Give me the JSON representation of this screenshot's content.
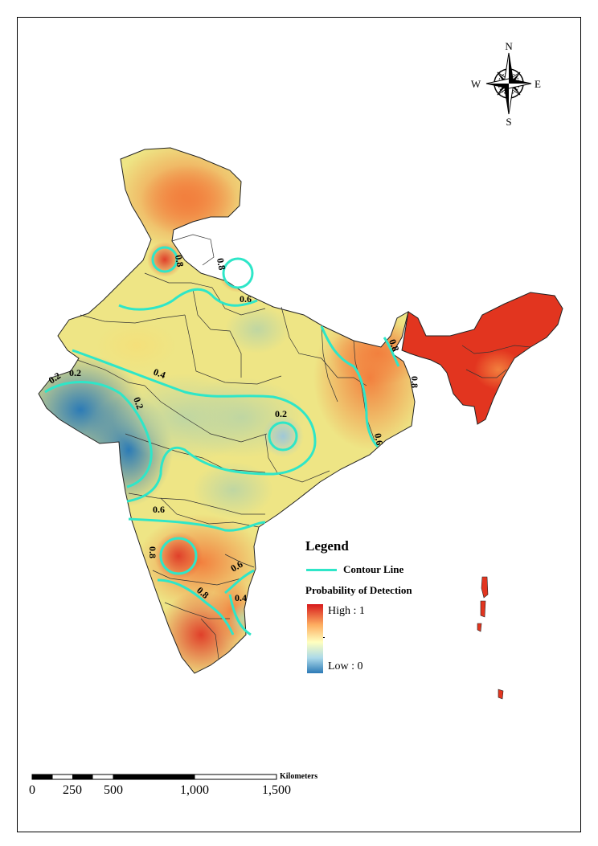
{
  "legend": {
    "title": "Legend",
    "contour_label": "Contour Line",
    "probability_title": "Probability of Detection",
    "high_label": "High : 1",
    "low_label": "Low : 0"
  },
  "compass": {
    "n": "N",
    "s": "S",
    "e": "E",
    "w": "W"
  },
  "scale_bar": {
    "unit": "Kilometers",
    "ticks": [
      "0",
      "250",
      "500",
      "1,000",
      "1,500"
    ]
  },
  "contour_labels": [
    "0.2",
    "0.2",
    "0.4",
    "0.2",
    "0.2",
    "0.6",
    "0.8",
    "0.8",
    "0.8",
    "0.8",
    "0.6",
    "0.6",
    "0.8",
    "0.6",
    "0.4",
    "0.8"
  ],
  "colors": {
    "high": "#d7191c",
    "mid_high": "#fdae61",
    "mid": "#ffffbf",
    "mid_low": "#abd9e9",
    "low": "#2c7bb6",
    "contour": "#2ee6c8"
  }
}
